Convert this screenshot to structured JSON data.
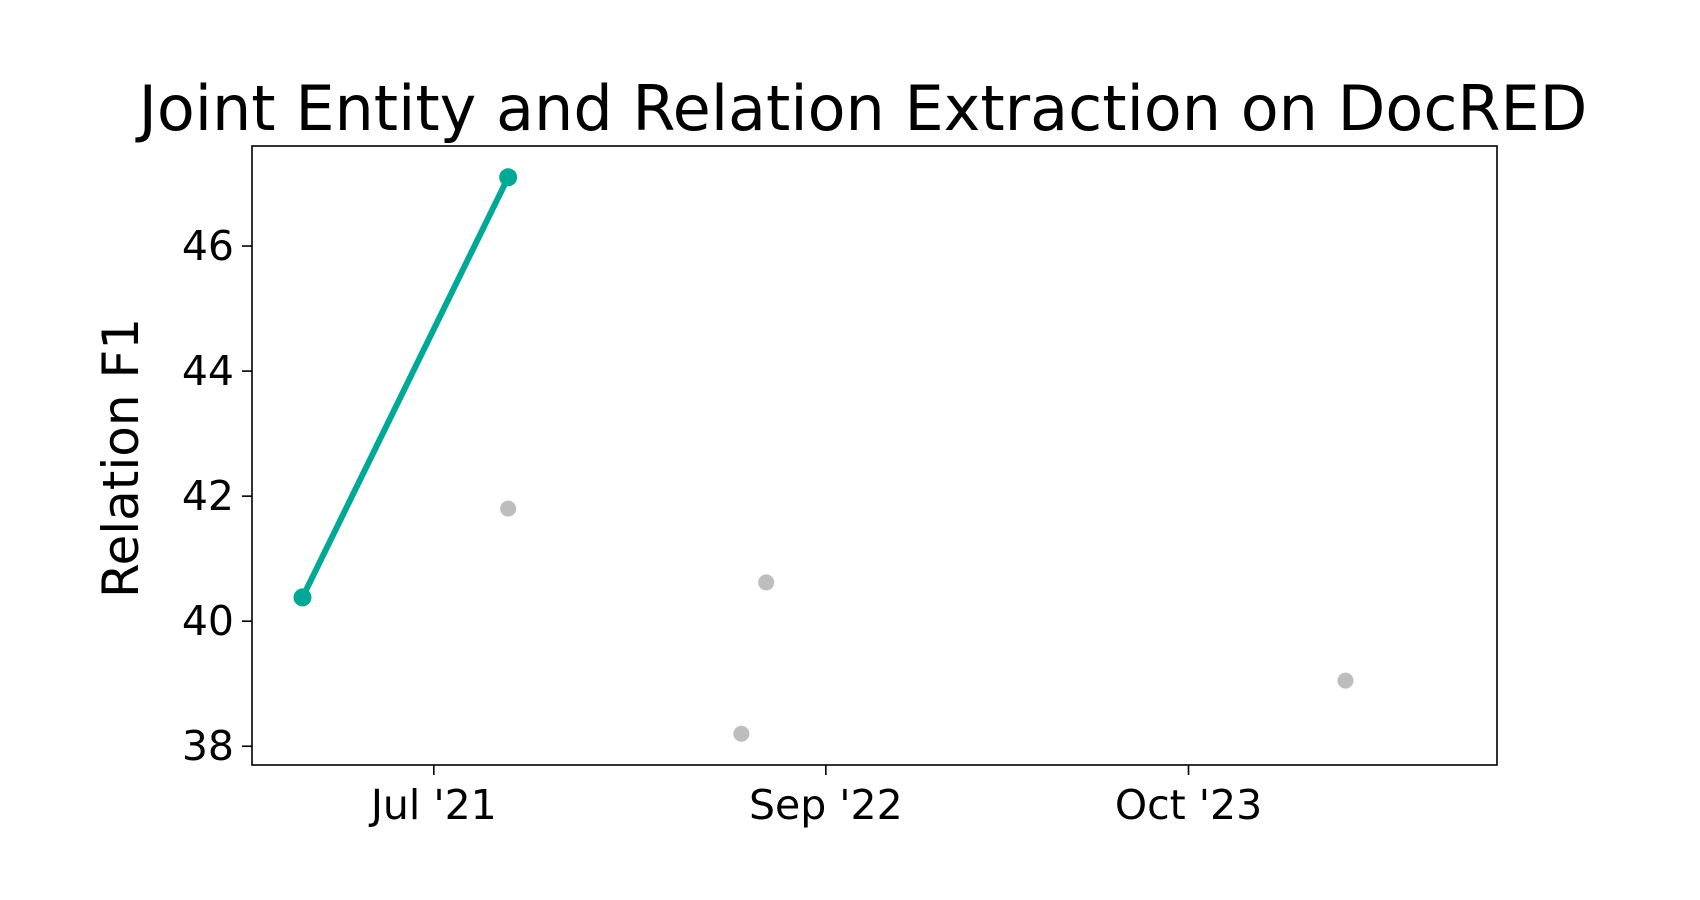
{
  "chart_data": {
    "type": "scatter",
    "title": "Joint Entity and Relation Extraction on DocRED",
    "xlabel": "",
    "ylabel": "Relation F1",
    "x_ticks": [
      {
        "date": "2021-07-01",
        "label": "Jul '21"
      },
      {
        "date": "2022-09-01",
        "label": "Sep '22"
      },
      {
        "date": "2023-10-01",
        "label": "Oct '23"
      }
    ],
    "y_ticks": [
      38,
      40,
      42,
      44,
      46
    ],
    "xlim": [
      "2020-12-15",
      "2024-09-01"
    ],
    "ylim": [
      37.7,
      47.6
    ],
    "grid": false,
    "series": [
      {
        "role": "state-of-the-art",
        "style": "line-with-markers",
        "color": "#00a896",
        "points": [
          {
            "x": "2021-02-08",
            "y": 40.38
          },
          {
            "x": "2021-09-20",
            "y": 47.1
          }
        ]
      },
      {
        "role": "other-results",
        "style": "markers",
        "color": "#bdbdbd",
        "points": [
          {
            "x": "2021-09-20",
            "y": 41.8
          },
          {
            "x": "2022-06-01",
            "y": 38.2
          },
          {
            "x": "2022-06-28",
            "y": 40.62
          },
          {
            "x": "2024-03-20",
            "y": 39.05
          }
        ]
      }
    ]
  }
}
